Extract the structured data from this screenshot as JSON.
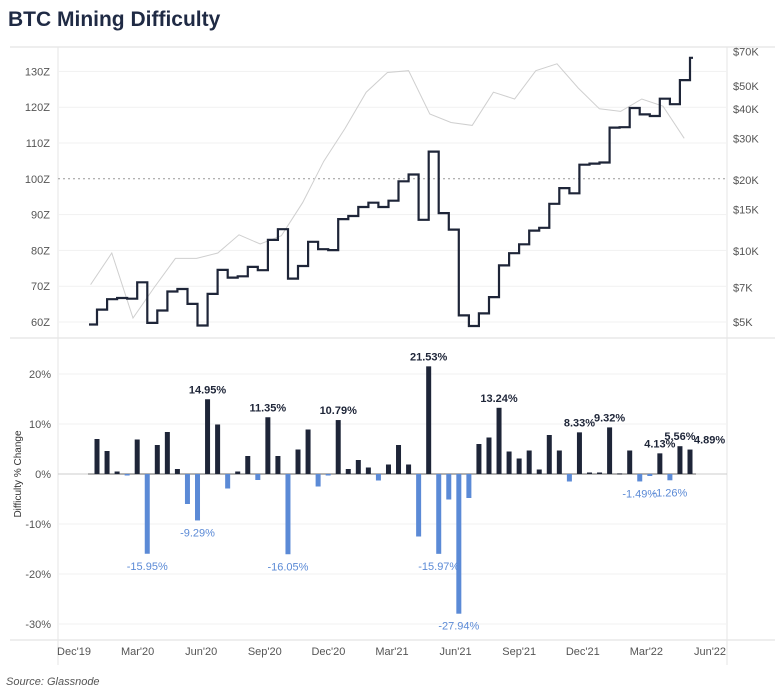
{
  "title": "BTC Mining Difficulty",
  "source": "Source: Glassnode",
  "chart_data": [
    {
      "type": "line",
      "panel": "top",
      "left_axis": {
        "ticks": [
          "60Z",
          "70Z",
          "80Z",
          "90Z",
          "100Z",
          "110Z",
          "120Z",
          "130Z"
        ],
        "values": [
          60,
          70,
          80,
          90,
          100,
          110,
          120,
          130
        ],
        "range": [
          57,
          137
        ]
      },
      "right_axis": {
        "scale": "log",
        "ticks": [
          "$5K",
          "$7K",
          "$10K",
          "$15K",
          "$20K",
          "$30K",
          "$40K",
          "$50K",
          "$70K"
        ],
        "values": [
          5000,
          7000,
          10000,
          15000,
          20000,
          30000,
          40000,
          50000,
          70000
        ],
        "range": [
          5000,
          70000
        ]
      },
      "reference_line": {
        "value": 100,
        "style": "dotted"
      },
      "grid": true,
      "series": [
        {
          "kind": "difficulty-step",
          "color": "#1e2538",
          "start": 59.3,
          "values": [
            63.45,
            66.37,
            66.7,
            66.5,
            71.09,
            59.75,
            63.22,
            68.53,
            69.21,
            65.06,
            59.02,
            67.84,
            74.56,
            72.4,
            72.76,
            75.38,
            74.48,
            82.93,
            85.91,
            72.12,
            75.65,
            82.39,
            80.33,
            80.09,
            88.73,
            89.62,
            92.13,
            93.33,
            92.12,
            93.87,
            99.31,
            101.2,
            88.55,
            107.61,
            90.43,
            85.82,
            61.84,
            58.87,
            62.4,
            66.96,
            75.82,
            79.23,
            81.69,
            85.53,
            86.3,
            93.03,
            97.4,
            95.94,
            103.93,
            104.24,
            104.55,
            114.3,
            114.41,
            119.79,
            118.0,
            117.53,
            122.38,
            120.84,
            127.56,
            133.8
          ]
        },
        {
          "kind": "btc-price",
          "color": "#cfcfcf",
          "dates": [
            "2020-01",
            "2020-02",
            "2020-03",
            "2020-04",
            "2020-05",
            "2020-06",
            "2020-07",
            "2020-08",
            "2020-09",
            "2020-10",
            "2020-11",
            "2020-12",
            "2021-01",
            "2021-02",
            "2021-03",
            "2021-04",
            "2021-05",
            "2021-06",
            "2021-07",
            "2021-08",
            "2021-09",
            "2021-10",
            "2021-11",
            "2021-12",
            "2022-01",
            "2022-02",
            "2022-03",
            "2022-04",
            "2022-05"
          ],
          "values": [
            7200,
            9800,
            5200,
            7000,
            9300,
            9300,
            9800,
            11700,
            10700,
            11600,
            16000,
            24000,
            33000,
            47000,
            57000,
            58000,
            38000,
            35000,
            34000,
            47000,
            44000,
            58000,
            62000,
            49000,
            40000,
            39000,
            44000,
            41000,
            30000
          ]
        }
      ]
    },
    {
      "type": "bar",
      "panel": "bottom",
      "ylabel": "Difficulty % Change",
      "y_axis": {
        "ticks": [
          "20%",
          "10%",
          "0%",
          "-10%",
          "-20%",
          "-30%"
        ],
        "values": [
          20,
          10,
          0,
          -10,
          -20,
          -30
        ],
        "range": [
          -33,
          26
        ]
      },
      "x_ticks": [
        "Dec'19",
        "Mar'20",
        "Jun'20",
        "Sep'20",
        "Dec'20",
        "Mar'21",
        "Jun'21",
        "Sep'21",
        "Dec'21",
        "Mar'22",
        "Jun'22"
      ],
      "colors": {
        "positive": "#1e2538",
        "negative": "#5b8ad6"
      },
      "grid": true,
      "values": [
        7.0,
        4.6,
        0.5,
        -0.3,
        6.9,
        -15.95,
        5.8,
        8.4,
        1.0,
        -6.0,
        -9.29,
        14.95,
        9.9,
        -2.9,
        0.5,
        3.6,
        -1.2,
        11.35,
        3.6,
        -16.05,
        4.9,
        8.9,
        -2.5,
        -0.3,
        10.79,
        1.0,
        2.8,
        1.3,
        -1.3,
        1.9,
        5.8,
        1.9,
        -12.5,
        21.53,
        -15.97,
        -5.1,
        -27.94,
        -4.8,
        6.0,
        7.3,
        13.24,
        4.5,
        3.1,
        4.7,
        0.9,
        7.8,
        4.7,
        -1.5,
        8.33,
        0.3,
        0.3,
        9.32,
        0.1,
        4.7,
        -1.49,
        -0.4,
        4.13,
        -1.26,
        5.56,
        4.89
      ],
      "labels": {
        "5": "-15.95%",
        "10": "-9.29%",
        "11": "14.95%",
        "17": "11.35%",
        "19": "-16.05%",
        "24": "10.79%",
        "33": "21.53%",
        "34": "-15.97%",
        "36": "-27.94%",
        "40": "13.24%",
        "48": "8.33%",
        "51": "9.32%",
        "54": "-1.49%",
        "56": "4.13%",
        "57": "-1.26%",
        "58": "5.56%",
        "59": "4.89%"
      }
    }
  ]
}
